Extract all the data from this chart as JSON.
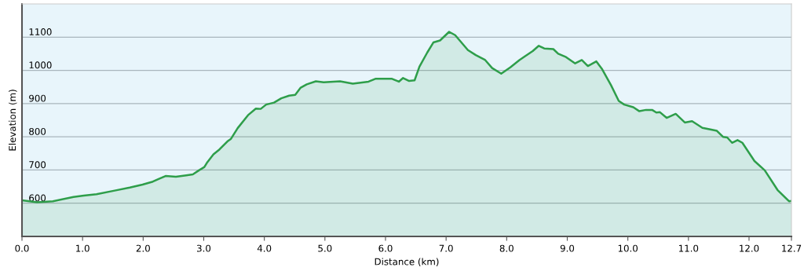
{
  "chart_data": {
    "type": "area",
    "xlabel": "Distance (km)",
    "ylabel": "Elevation (m)",
    "x": [
      0,
      0.25,
      0.51,
      0.85,
      1.02,
      1.23,
      1.53,
      1.78,
      1.99,
      2.16,
      2.27,
      2.37,
      2.54,
      2.71,
      2.82,
      2.92,
      3.01,
      3.05,
      3.16,
      3.26,
      3.39,
      3.45,
      3.56,
      3.73,
      3.86,
      3.94,
      4.03,
      4.16,
      4.28,
      4.41,
      4.51,
      4.6,
      4.7,
      4.85,
      4.98,
      5.25,
      5.46,
      5.72,
      5.84,
      6.1,
      6.22,
      6.29,
      6.39,
      6.48,
      6.56,
      6.69,
      6.79,
      6.9,
      7.05,
      7.15,
      7.36,
      7.49,
      7.64,
      7.76,
      7.91,
      8.06,
      8.21,
      8.3,
      8.43,
      8.53,
      8.62,
      8.77,
      8.85,
      8.98,
      9.13,
      9.24,
      9.34,
      9.48,
      9.57,
      9.72,
      9.85,
      9.94,
      10.09,
      10.19,
      10.3,
      10.4,
      10.47,
      10.53,
      10.64,
      10.79,
      10.94,
      11.06,
      11.23,
      11.36,
      11.47,
      11.57,
      11.64,
      11.72,
      11.81,
      11.89,
      12.09,
      12.26,
      12.47,
      12.66,
      12.7
    ],
    "series": [
      {
        "color": "#2e9e4a",
        "values": [
          609,
          603,
          606,
          619,
          623,
          627,
          638,
          647,
          656,
          665,
          674,
          682,
          680,
          684,
          687,
          699,
          709,
          721,
          747,
          762,
          786,
          794,
          826,
          865,
          885,
          884,
          897,
          903,
          916,
          924,
          926,
          948,
          958,
          967,
          964,
          967,
          960,
          966,
          975,
          975,
          966,
          977,
          968,
          970,
          1011,
          1054,
          1084,
          1090,
          1116,
          1106,
          1061,
          1046,
          1032,
          1007,
          990,
          1009,
          1031,
          1042,
          1058,
          1074,
          1066,
          1064,
          1050,
          1040,
          1021,
          1031,
          1013,
          1027,
          1005,
          956,
          908,
          897,
          889,
          877,
          881,
          881,
          873,
          874,
          857,
          869,
          843,
          847,
          827,
          822,
          818,
          800,
          798,
          782,
          790,
          782,
          727,
          699,
          640,
          606,
          607
        ]
      }
    ],
    "xlim": [
      0,
      12.7
    ],
    "ylim": [
      500,
      1200
    ],
    "xticks": [
      {
        "value": 0,
        "label": "0.0"
      },
      {
        "value": 1,
        "label": "1.0"
      },
      {
        "value": 2,
        "label": "2.0"
      },
      {
        "value": 3,
        "label": "3.0"
      },
      {
        "value": 4,
        "label": "4.0"
      },
      {
        "value": 5,
        "label": "5.0"
      },
      {
        "value": 6,
        "label": "6.0"
      },
      {
        "value": 7,
        "label": "7.0"
      },
      {
        "value": 8,
        "label": "8.0"
      },
      {
        "value": 9,
        "label": "9.0"
      },
      {
        "value": 10,
        "label": "10.0"
      },
      {
        "value": 11,
        "label": "11.0"
      },
      {
        "value": 12,
        "label": "12.0"
      },
      12.7
    ],
    "yticks": [
      600,
      700,
      800,
      900,
      1000,
      1100
    ],
    "grid": "y"
  }
}
